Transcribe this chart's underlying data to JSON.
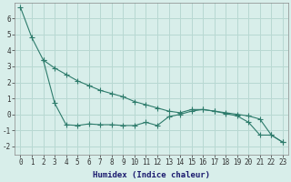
{
  "line1_x": [
    0,
    1,
    2,
    3,
    4,
    5,
    6,
    7,
    8,
    9,
    10,
    11,
    12,
    13,
    14,
    15,
    16,
    17,
    18,
    19,
    20,
    21,
    22,
    23
  ],
  "line1_y": [
    6.7,
    4.8,
    3.4,
    2.9,
    2.5,
    2.1,
    1.8,
    1.5,
    1.3,
    1.1,
    0.8,
    0.6,
    0.4,
    0.2,
    0.1,
    0.3,
    0.3,
    0.2,
    0.1,
    0.0,
    -0.1,
    -0.3,
    -1.3,
    -1.75
  ],
  "line2_x": [
    2,
    3,
    4,
    5,
    6,
    7,
    8,
    9,
    10,
    11,
    12,
    13,
    14,
    15,
    16,
    17,
    18,
    19,
    20,
    21,
    22,
    23
  ],
  "line2_y": [
    3.4,
    0.7,
    -0.65,
    -0.7,
    -0.6,
    -0.65,
    -0.65,
    -0.7,
    -0.7,
    -0.5,
    -0.7,
    -0.15,
    0.0,
    0.2,
    0.3,
    0.2,
    0.05,
    -0.1,
    -0.5,
    -1.3,
    -1.3,
    -1.75
  ],
  "line_color": "#2d7b6b",
  "marker": "+",
  "markersize": 4.0,
  "linewidth": 0.8,
  "background_color": "#d8eeea",
  "grid_color": "#b8d8d2",
  "xlim": [
    -0.5,
    23.5
  ],
  "ylim": [
    -2.5,
    7.0
  ],
  "xlabel": "Humidex (Indice chaleur)",
  "xticks": [
    0,
    1,
    2,
    3,
    4,
    5,
    6,
    7,
    8,
    9,
    10,
    11,
    12,
    13,
    14,
    15,
    16,
    17,
    18,
    19,
    20,
    21,
    22,
    23
  ],
  "yticks": [
    -2,
    -1,
    0,
    1,
    2,
    3,
    4,
    5,
    6
  ],
  "xlabel_fontsize": 6.5,
  "tick_fontsize": 5.5,
  "spine_color": "#888888"
}
